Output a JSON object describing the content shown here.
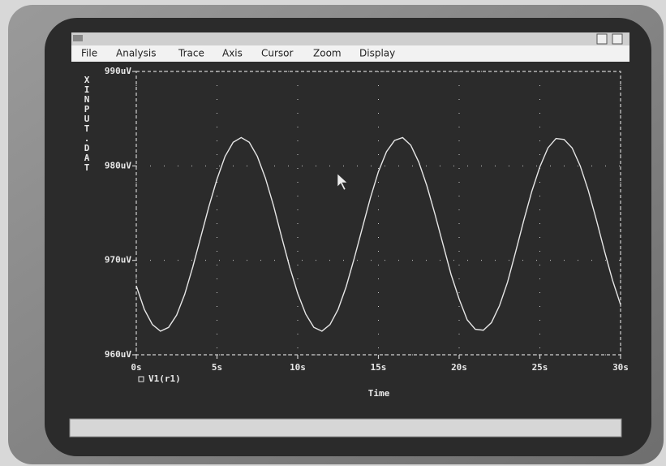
{
  "menu": [
    "File",
    "Analysis",
    "Trace",
    "Axis",
    "Cursor",
    "Zoom",
    "Display"
  ],
  "chart_data": {
    "type": "line",
    "ylabel": "XINPUT.DAT",
    "xlabel": "Time",
    "x": [
      0,
      0.5,
      1,
      1.5,
      2,
      2.5,
      3,
      3.5,
      4,
      4.5,
      5,
      5.5,
      6,
      6.5,
      7,
      7.5,
      8,
      8.5,
      9,
      9.5,
      10,
      10.5,
      11,
      11.5,
      12,
      12.5,
      13,
      13.5,
      14,
      14.5,
      15,
      15.5,
      16,
      16.5,
      17,
      17.5,
      18,
      18.5,
      19,
      19.5,
      20,
      20.5,
      21,
      21.5,
      22,
      22.5,
      23,
      23.5,
      24,
      24.5,
      25,
      25.5,
      26,
      26.5,
      27,
      27.5,
      28,
      28.5,
      29,
      29.5,
      30
    ],
    "series": [
      {
        "name": "V1(r1)",
        "color": "#e6e6e6",
        "values": [
          967.3,
          964.8,
          963.2,
          962.5,
          962.9,
          964.2,
          966.4,
          969.3,
          972.5,
          975.7,
          978.6,
          981.0,
          982.5,
          983.0,
          982.5,
          981.0,
          978.7,
          975.8,
          972.5,
          969.3,
          966.5,
          964.3,
          962.9,
          962.5,
          963.2,
          964.8,
          967.2,
          970.2,
          973.4,
          976.6,
          979.4,
          981.5,
          982.7,
          983.0,
          982.2,
          980.4,
          977.9,
          974.9,
          971.7,
          968.5,
          965.9,
          963.7,
          962.7,
          962.6,
          963.4,
          965.2,
          967.7,
          970.9,
          974.2,
          977.3,
          979.9,
          981.9,
          982.9,
          982.8,
          981.9,
          980.0,
          977.4,
          974.3,
          971.0,
          967.9,
          965.3
        ]
      }
    ],
    "xlim": [
      0,
      30
    ],
    "xticks": [
      {
        "value": 0,
        "label": "0s"
      },
      {
        "value": 5,
        "label": "5s"
      },
      {
        "value": 10,
        "label": "10s"
      },
      {
        "value": 15,
        "label": "15s"
      },
      {
        "value": 20,
        "label": "20s"
      },
      {
        "value": 25,
        "label": "25s"
      },
      {
        "value": 30,
        "label": "30s"
      }
    ],
    "ylim": [
      960,
      990
    ],
    "yticks": [
      {
        "value": 960,
        "label": "960uV"
      },
      {
        "value": 970,
        "label": "970uV"
      },
      {
        "value": 980,
        "label": "980uV"
      },
      {
        "value": 990,
        "label": "990uV"
      }
    ],
    "grid": true
  }
}
